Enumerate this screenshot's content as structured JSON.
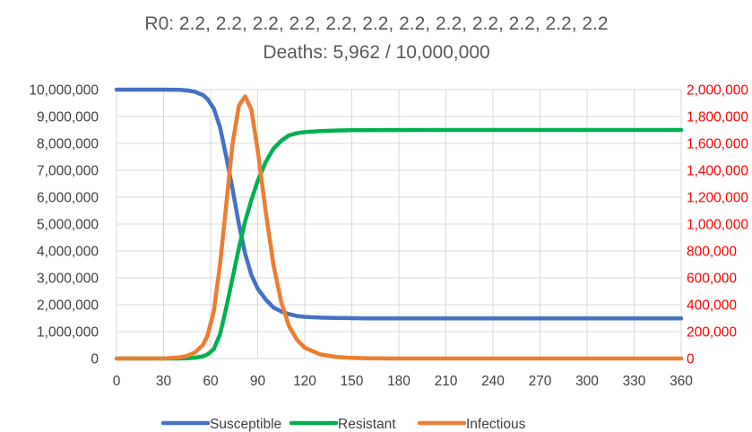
{
  "chart_data": {
    "type": "line",
    "title_line1": "R0: 2.2, 2.2, 2.2, 2.2, 2.2, 2.2, 2.2, 2.2, 2.2, 2.2, 2.2, 2.2",
    "title_line2": "Deaths: 5,962 / 10,000,000",
    "grid": true,
    "legend_position": "bottom",
    "x_range": [
      0,
      360
    ],
    "x_ticks": [
      "0",
      "30",
      "60",
      "90",
      "120",
      "150",
      "180",
      "210",
      "240",
      "270",
      "300",
      "330",
      "360"
    ],
    "y_left_range": [
      0,
      10000000
    ],
    "y_left_ticks": [
      "0",
      "1,000,000",
      "2,000,000",
      "3,000,000",
      "4,000,000",
      "5,000,000",
      "6,000,000",
      "7,000,000",
      "8,000,000",
      "9,000,000",
      "10,000,000"
    ],
    "y_right_range": [
      0,
      2000000
    ],
    "y_right_ticks": [
      "0",
      "200,000",
      "400,000",
      "600,000",
      "800,000",
      "1,000,000",
      "1,200,000",
      "1,400,000",
      "1,600,000",
      "1,800,000",
      "2,000,000"
    ],
    "series": [
      {
        "name": "Susceptible",
        "axis": "left",
        "color": "#4472c4",
        "points": [
          [
            0,
            10000000
          ],
          [
            30,
            10000000
          ],
          [
            40,
            9990000
          ],
          [
            45,
            9970000
          ],
          [
            50,
            9920000
          ],
          [
            55,
            9800000
          ],
          [
            58,
            9650000
          ],
          [
            62,
            9300000
          ],
          [
            66,
            8600000
          ],
          [
            70,
            7500000
          ],
          [
            74,
            6300000
          ],
          [
            78,
            5000000
          ],
          [
            82,
            3900000
          ],
          [
            86,
            3100000
          ],
          [
            90,
            2600000
          ],
          [
            95,
            2200000
          ],
          [
            100,
            1900000
          ],
          [
            105,
            1750000
          ],
          [
            110,
            1650000
          ],
          [
            115,
            1580000
          ],
          [
            120,
            1550000
          ],
          [
            130,
            1520000
          ],
          [
            140,
            1510000
          ],
          [
            150,
            1500000
          ],
          [
            160,
            1490000
          ],
          [
            200,
            1490000
          ],
          [
            250,
            1490000
          ],
          [
            300,
            1490000
          ],
          [
            360,
            1490000
          ]
        ]
      },
      {
        "name": "Resistant",
        "axis": "left",
        "color": "#00b050",
        "points": [
          [
            0,
            0
          ],
          [
            40,
            0
          ],
          [
            45,
            10000
          ],
          [
            50,
            30000
          ],
          [
            55,
            80000
          ],
          [
            58,
            150000
          ],
          [
            62,
            350000
          ],
          [
            66,
            900000
          ],
          [
            70,
            1900000
          ],
          [
            74,
            3000000
          ],
          [
            78,
            4100000
          ],
          [
            82,
            5100000
          ],
          [
            86,
            5900000
          ],
          [
            90,
            6600000
          ],
          [
            95,
            7300000
          ],
          [
            100,
            7800000
          ],
          [
            105,
            8100000
          ],
          [
            110,
            8300000
          ],
          [
            115,
            8380000
          ],
          [
            120,
            8420000
          ],
          [
            130,
            8460000
          ],
          [
            140,
            8480000
          ],
          [
            150,
            8490000
          ],
          [
            200,
            8500000
          ],
          [
            250,
            8500000
          ],
          [
            300,
            8500000
          ],
          [
            360,
            8500000
          ]
        ]
      },
      {
        "name": "Infectious",
        "axis": "right",
        "color": "#ed7d31",
        "points": [
          [
            0,
            0
          ],
          [
            30,
            0
          ],
          [
            40,
            8000
          ],
          [
            45,
            20000
          ],
          [
            50,
            45000
          ],
          [
            55,
            100000
          ],
          [
            58,
            170000
          ],
          [
            62,
            350000
          ],
          [
            66,
            700000
          ],
          [
            70,
            1150000
          ],
          [
            74,
            1600000
          ],
          [
            78,
            1880000
          ],
          [
            82,
            1950000
          ],
          [
            86,
            1850000
          ],
          [
            90,
            1550000
          ],
          [
            95,
            1100000
          ],
          [
            100,
            700000
          ],
          [
            105,
            420000
          ],
          [
            110,
            240000
          ],
          [
            115,
            140000
          ],
          [
            120,
            80000
          ],
          [
            130,
            30000
          ],
          [
            140,
            12000
          ],
          [
            150,
            5000
          ],
          [
            160,
            2000
          ],
          [
            180,
            0
          ],
          [
            360,
            0
          ]
        ]
      }
    ]
  }
}
